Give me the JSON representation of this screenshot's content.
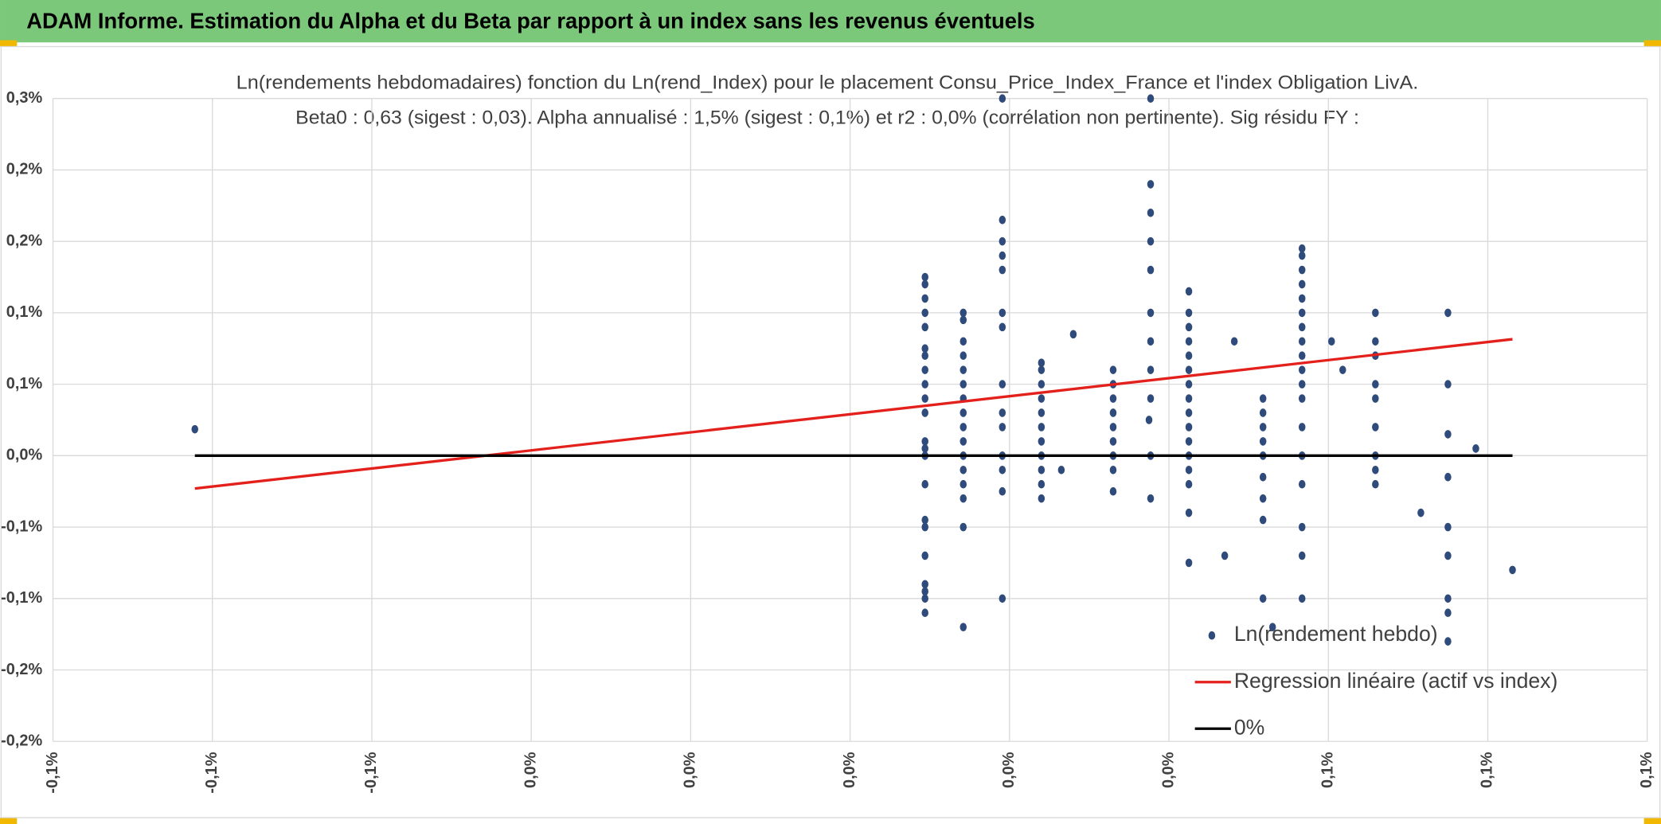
{
  "header": "ADAM Informe. Estimation du Alpha et du Beta par rapport à un index sans les revenus éventuels",
  "chart_data": {
    "type": "scatter",
    "title": "Ln(rendements hebdomadaires) fonction du Ln(rend_Index) pour le placement Consu_Price_Index_France et l'index Obligation LivA.",
    "subtitle": "Beta0 : 0,63 (sigest : 0,03). Alpha annualisé : 1,5% (sigest : 0,1%) et r2 : 0,0% (corrélation non pertinente). Sig résidu FY :",
    "xlim": [
      -0.1,
      0.1
    ],
    "xticks": [
      {
        "value": -0.1,
        "label": "-0,1%"
      },
      {
        "value": -0.08,
        "label": "-0,1%"
      },
      {
        "value": -0.06,
        "label": "-0,1%"
      },
      {
        "value": -0.04,
        "label": "0,0%"
      },
      {
        "value": -0.02,
        "label": "0,0%"
      },
      {
        "value": 0,
        "label": "0,0%"
      },
      {
        "value": 0.02,
        "label": "0,0%"
      },
      {
        "value": 0.04,
        "label": "0,0%"
      },
      {
        "value": 0.06,
        "label": "0,1%"
      },
      {
        "value": 0.08,
        "label": "0,1%"
      },
      {
        "value": 0.1,
        "label": "0,1%"
      }
    ],
    "ylim": [
      -0.2,
      0.25
    ],
    "yticks": [
      {
        "value": -0.2,
        "label": "-0,2%"
      },
      {
        "value": -0.15,
        "label": "-0,2%"
      },
      {
        "value": -0.1,
        "label": "-0,1%"
      },
      {
        "value": -0.05,
        "label": "-0,1%"
      },
      {
        "value": 0,
        "label": "0,0%"
      },
      {
        "value": 0.05,
        "label": "0,1%"
      },
      {
        "value": 0.1,
        "label": "0,1%"
      },
      {
        "value": 0.15,
        "label": "0,2%"
      },
      {
        "value": 0.2,
        "label": "0,2%"
      },
      {
        "value": 0.25,
        "label": "0,3%"
      }
    ],
    "grid": true,
    "legend": "bottom-right",
    "series": [
      {
        "name": "Ln(rendement hebdo)",
        "color": "#2f4b7c",
        "style": "markers",
        "x": [
          0.0094,
          0.0094,
          0.0094,
          0.0094,
          0.0094,
          0.0094,
          0.0094,
          0.0094,
          0.0094,
          0.0094,
          0.0094,
          0.0094,
          0.0094,
          0.0094,
          0.0094,
          0.0094,
          0.0094,
          0.0094,
          0.0094,
          0.0094,
          0.0094,
          0.0094,
          0.0142,
          0.0142,
          0.0142,
          0.0142,
          0.0142,
          0.0142,
          0.0142,
          0.0142,
          0.0142,
          0.0142,
          0.0142,
          0.0142,
          0.0142,
          0.0142,
          0.0142,
          0.0142,
          0.0191,
          0.0191,
          0.0191,
          0.0191,
          0.0191,
          0.0191,
          0.0191,
          0.0191,
          0.0191,
          0.0191,
          0.0191,
          0.0191,
          0.0191,
          0.0191,
          0.024,
          0.024,
          0.024,
          0.024,
          0.024,
          0.024,
          0.024,
          0.024,
          0.024,
          0.024,
          0.024,
          0.033,
          0.033,
          0.033,
          0.033,
          0.033,
          0.033,
          0.033,
          0.033,
          0.033,
          0.0377,
          0.0377,
          0.0377,
          0.0377,
          0.0377,
          0.0377,
          0.0377,
          0.0377,
          0.0377,
          0.0377,
          0.0377,
          0.0425,
          0.0425,
          0.0425,
          0.0425,
          0.0425,
          0.0425,
          0.0425,
          0.0425,
          0.0425,
          0.0425,
          0.0425,
          0.0425,
          0.0425,
          0.0425,
          0.0425,
          0.0425,
          0.0518,
          0.0518,
          0.0518,
          0.0518,
          0.0518,
          0.0518,
          0.0518,
          0.0518,
          0.0518,
          0.0567,
          0.0567,
          0.0567,
          0.0567,
          0.0567,
          0.0567,
          0.0567,
          0.0567,
          0.0567,
          0.0567,
          0.0567,
          0.0567,
          0.0567,
          0.0567,
          0.0567,
          0.0567,
          0.0567,
          0.0567,
          0.0659,
          0.0659,
          0.0659,
          0.0659,
          0.0659,
          0.0659,
          0.0659,
          0.0659,
          0.0659,
          0.075,
          0.075,
          0.075,
          0.075,
          0.075,
          0.075,
          0.075,
          0.075,
          0.075,
          -0.0822,
          0.0831,
          0.0785,
          0.0716,
          0.0265,
          0.0604,
          0.0618,
          0.0482,
          0.047,
          0.053,
          0.0375,
          0.028
        ],
        "values": [
          0.125,
          0.12,
          0.11,
          0.1,
          0.09,
          0.075,
          0.07,
          0.06,
          0.05,
          0.04,
          0.03,
          0.01,
          0.005,
          0,
          -0.02,
          -0.05,
          -0.07,
          -0.09,
          -0.1,
          -0.11,
          -0.095,
          -0.045,
          0.1,
          0.095,
          0.08,
          0.07,
          0.06,
          0.05,
          0.04,
          0.03,
          0.02,
          0.01,
          0,
          -0.01,
          -0.02,
          -0.03,
          -0.05,
          -0.12,
          0.165,
          0.15,
          0.14,
          0.13,
          0.1,
          0.09,
          0.05,
          0.03,
          0.02,
          0,
          -0.01,
          -0.025,
          -0.1,
          0.25,
          0.065,
          0.06,
          0.05,
          0.04,
          0.03,
          0.02,
          0.01,
          0,
          -0.01,
          -0.02,
          -0.03,
          0.06,
          0.05,
          0.04,
          0.03,
          0.02,
          0.01,
          0,
          -0.01,
          -0.025,
          0.25,
          0.19,
          0.17,
          0.15,
          0.13,
          0.1,
          0.08,
          0.06,
          0.04,
          0,
          -0.03,
          0.115,
          0.1,
          0.09,
          0.08,
          0.07,
          0.06,
          0.05,
          0.04,
          0.03,
          0.02,
          0.01,
          0,
          -0.01,
          -0.02,
          -0.04,
          -0.075,
          0.04,
          0.03,
          0.02,
          0.01,
          0,
          -0.015,
          -0.03,
          -0.045,
          -0.1,
          0.145,
          0.14,
          0.13,
          0.12,
          0.11,
          0.1,
          0.09,
          0.08,
          0.07,
          0.06,
          0.05,
          0.04,
          0.02,
          0,
          -0.02,
          -0.05,
          -0.07,
          -0.1,
          0.1,
          0.08,
          0.07,
          0.05,
          0.04,
          0.02,
          0,
          -0.01,
          -0.02,
          0.1,
          0.05,
          0.015,
          -0.015,
          -0.05,
          -0.07,
          -0.1,
          -0.11,
          -0.13,
          0.0185,
          -0.08,
          0.005,
          -0.04,
          -0.01,
          0.08,
          0.06,
          0.08,
          -0.07,
          -0.12,
          0.025,
          0.085
        ]
      },
      {
        "name": "Regression linéaire (actif vs index)",
        "color": "#e3201b",
        "style": "line",
        "x": [
          -0.0822,
          0.0831
        ],
        "values": [
          -0.023,
          0.0815
        ]
      },
      {
        "name": "0%",
        "color": "#000000",
        "style": "line",
        "x": [
          -0.0822,
          0.0831
        ],
        "values": [
          0,
          0
        ]
      }
    ]
  }
}
